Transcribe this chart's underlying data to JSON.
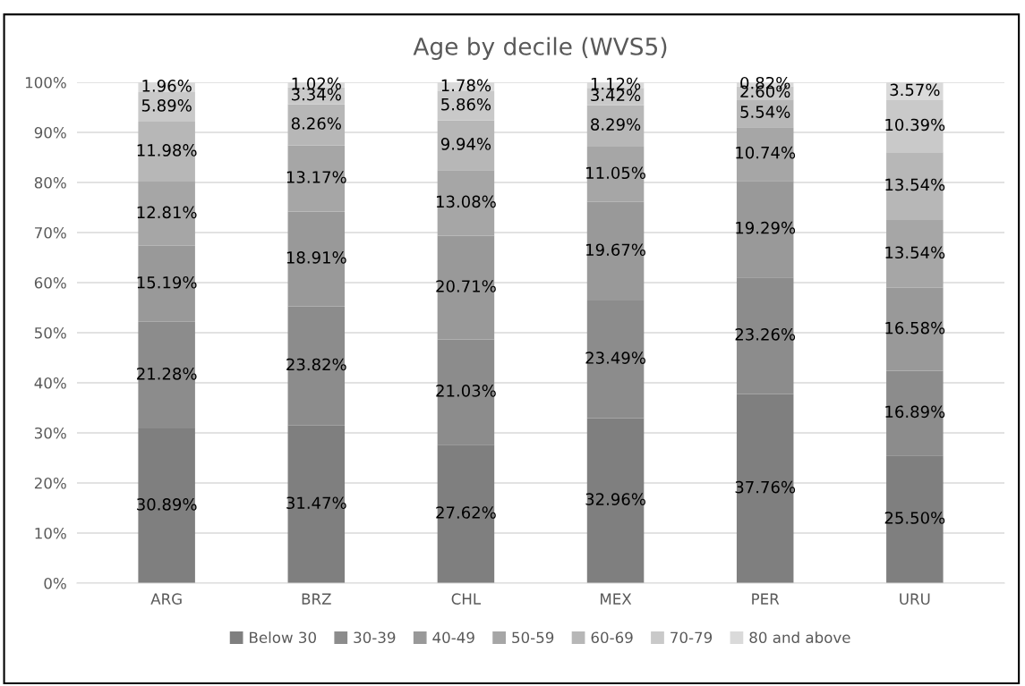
{
  "chart_data": {
    "type": "bar",
    "stacked": true,
    "title": "Age by decile (WVS5)",
    "categories": [
      "ARG",
      "BRZ",
      "CHL",
      "MEX",
      "PER",
      "URU"
    ],
    "series": [
      {
        "name": "Below 30",
        "color": "#7f7f7f",
        "values": [
          30.89,
          31.47,
          27.62,
          32.96,
          37.76,
          25.5
        ],
        "value_labels": [
          "30.89%",
          "31.47%",
          "27.62%",
          "32.96%",
          "37.76%",
          "25.50%"
        ]
      },
      {
        "name": "30-39",
        "color": "#8c8c8c",
        "values": [
          21.28,
          23.82,
          21.03,
          23.49,
          23.26,
          16.89
        ],
        "value_labels": [
          "21.28%",
          "23.82%",
          "21.03%",
          "23.49%",
          "23.26%",
          "16.89%"
        ]
      },
      {
        "name": "40-49",
        "color": "#999999",
        "values": [
          15.19,
          18.91,
          20.71,
          19.67,
          19.29,
          16.58
        ],
        "value_labels": [
          "15.19%",
          "18.91%",
          "20.71%",
          "19.67%",
          "19.29%",
          "16.58%"
        ]
      },
      {
        "name": "50-59",
        "color": "#a6a6a6",
        "values": [
          12.81,
          13.17,
          13.08,
          11.05,
          10.74,
          13.54
        ],
        "value_labels": [
          "12.81%",
          "13.17%",
          "13.08%",
          "11.05%",
          "10.74%",
          "13.54%"
        ]
      },
      {
        "name": "60-69",
        "color": "#b7b7b7",
        "values": [
          11.98,
          8.26,
          9.94,
          8.29,
          5.54,
          13.54
        ],
        "value_labels": [
          "11.98%",
          "8.26%",
          "9.94%",
          "8.29%",
          "5.54%",
          "13.54%"
        ]
      },
      {
        "name": "70-79",
        "color": "#c9c9c9",
        "values": [
          5.89,
          3.34,
          5.86,
          3.42,
          2.6,
          10.39
        ],
        "value_labels": [
          "5.89%",
          "3.34%",
          "5.86%",
          "3.42%",
          "2.60%",
          "10.39%"
        ]
      },
      {
        "name": "80 and above",
        "color": "#dadada",
        "values": [
          1.96,
          1.02,
          1.78,
          1.12,
          0.82,
          3.57
        ],
        "value_labels": [
          "1.96%",
          "1.02%",
          "1.78%",
          "1.12%",
          "0.82%",
          "3.57%"
        ]
      }
    ],
    "ylim": [
      0,
      100
    ],
    "yticks": [
      {
        "value": 0,
        "label": "0%"
      },
      {
        "value": 10,
        "label": "10%"
      },
      {
        "value": 20,
        "label": "20%"
      },
      {
        "value": 30,
        "label": "30%"
      },
      {
        "value": 40,
        "label": "40%"
      },
      {
        "value": 50,
        "label": "50%"
      },
      {
        "value": 60,
        "label": "60%"
      },
      {
        "value": 70,
        "label": "70%"
      },
      {
        "value": 80,
        "label": "80%"
      },
      {
        "value": 90,
        "label": "90%"
      },
      {
        "value": 100,
        "label": "100%"
      }
    ],
    "grid": "y",
    "legend": "bottom"
  }
}
